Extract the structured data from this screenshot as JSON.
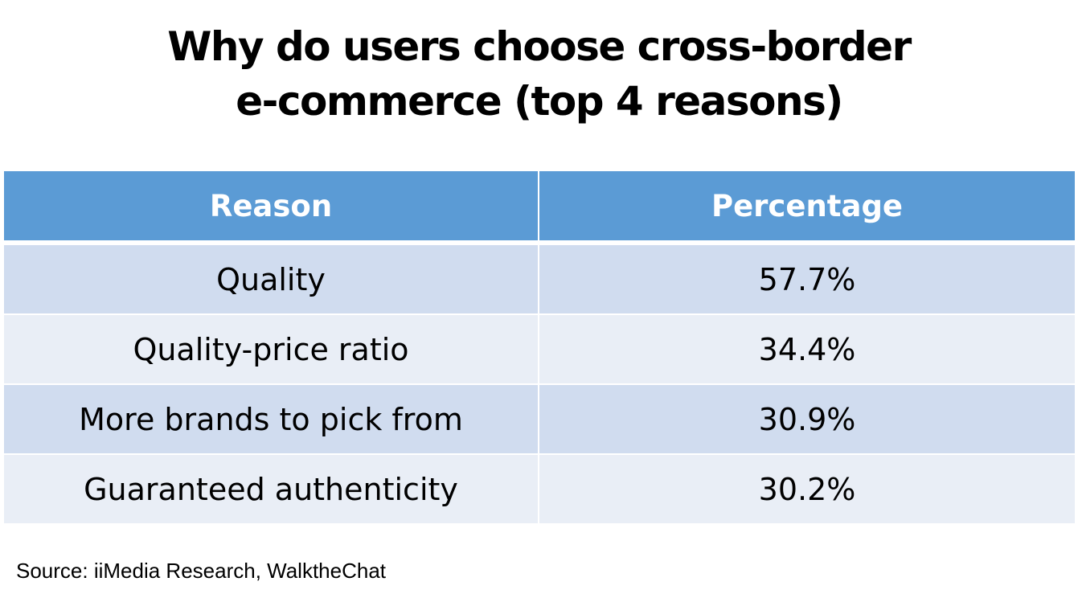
{
  "title": {
    "line1": "Why do users choose cross-border",
    "line2": "e-commerce (top 4 reasons)"
  },
  "chart_data": {
    "type": "table",
    "columns": [
      "Reason",
      "Percentage"
    ],
    "rows": [
      {
        "reason": "Quality",
        "percentage": "57.7%"
      },
      {
        "reason": "Quality-price ratio",
        "percentage": "34.4%"
      },
      {
        "reason": "More brands to pick from",
        "percentage": "30.9%"
      },
      {
        "reason": "Guaranteed authenticity",
        "percentage": "30.2%"
      }
    ]
  },
  "source": "Source: iiMedia Research, WalktheChat",
  "colors": {
    "header": "#5b9bd5",
    "row_odd": "#d0dcef",
    "row_even": "#e9eef6"
  }
}
